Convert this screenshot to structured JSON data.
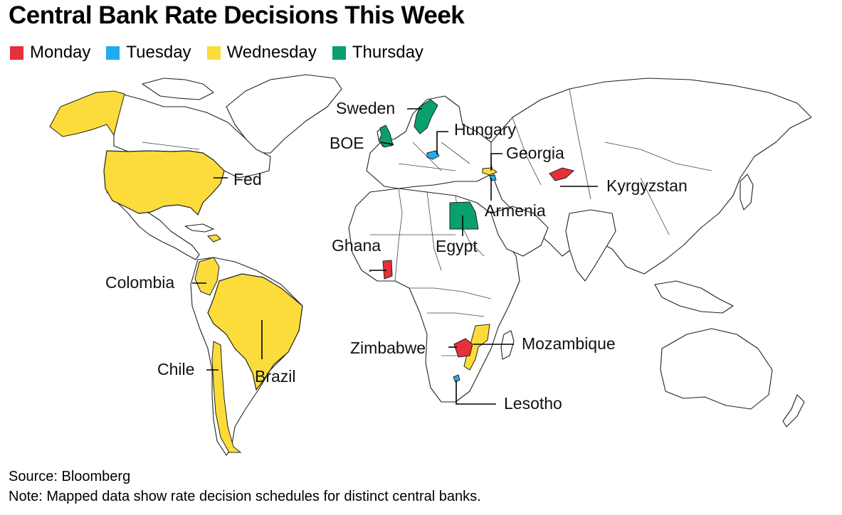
{
  "title": "Central Bank Rate Decisions This Week",
  "legend": [
    {
      "label": "Monday",
      "color": "#e8303a"
    },
    {
      "label": "Tuesday",
      "color": "#22aaee"
    },
    {
      "label": "Wednesday",
      "color": "#fcdc3a"
    },
    {
      "label": "Thursday",
      "color": "#0aa06e"
    }
  ],
  "labels": {
    "sweden": "Sweden",
    "hungary": "Hungary",
    "boe": "BOE",
    "georgia": "Georgia",
    "kyrgyzstan": "Kyrgyzstan",
    "fed": "Fed",
    "armenia": "Armenia",
    "ghana": "Ghana",
    "egypt": "Egypt",
    "colombia": "Colombia",
    "zimbabwe": "Zimbabwe",
    "mozambique": "Mozambique",
    "chile": "Chile",
    "brazil": "Brazil",
    "lesotho": "Lesotho"
  },
  "highlights": {
    "Monday": [
      "Kyrgyzstan",
      "Ghana",
      "Zimbabwe"
    ],
    "Tuesday": [
      "Hungary",
      "Lesotho",
      "Armenia"
    ],
    "Wednesday": [
      "Fed",
      "Colombia",
      "Brazil",
      "Chile",
      "Mozambique",
      "Georgia"
    ],
    "Thursday": [
      "Sweden",
      "BOE",
      "Egypt"
    ]
  },
  "source": "Source: Bloomberg",
  "note": "Note: Mapped data show rate decision schedules for distinct central banks."
}
